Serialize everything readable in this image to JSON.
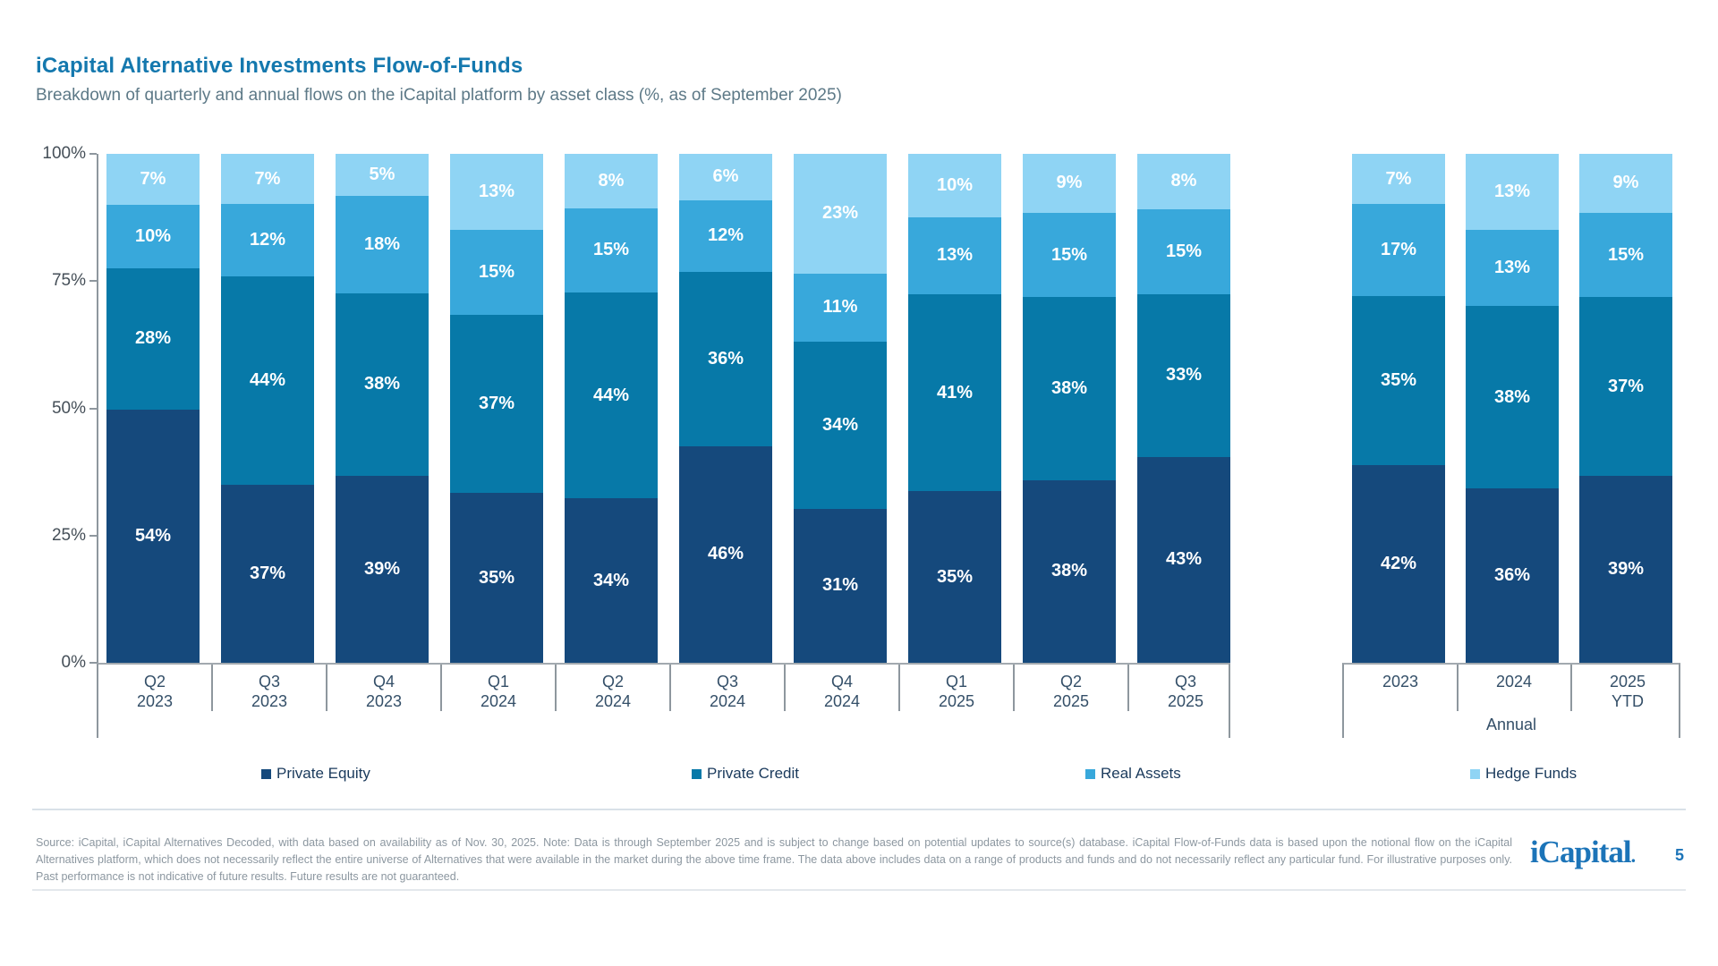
{
  "header": {
    "title": "iCapital Alternative Investments Flow-of-Funds",
    "subtitle": "Breakdown of quarterly and annual flows on the iCapital platform by asset class (%, as of September 2025)"
  },
  "chart_data": {
    "type": "bar",
    "stacked": true,
    "percent_stacked": true,
    "title": "iCapital Alternative Investments Flow-of-Funds",
    "xlabel": "",
    "ylabel": "",
    "unit": "%",
    "ylim": [
      0,
      100
    ],
    "yticks": [
      100,
      75,
      50,
      25,
      0
    ],
    "grid": false,
    "legend_position": "bottom",
    "series": [
      {
        "name": "Private Equity",
        "color": "#15497C"
      },
      {
        "name": "Private Credit",
        "color": "#0779A8"
      },
      {
        "name": "Real Assets",
        "color": "#38A8DB"
      },
      {
        "name": "Hedge Funds",
        "color": "#8FD4F4"
      }
    ],
    "groups": [
      {
        "name": "Quarterly",
        "group_label": "",
        "bars": [
          {
            "category": [
              "Q2",
              "2023"
            ],
            "values": [
              54,
              28,
              10,
              7
            ]
          },
          {
            "category": [
              "Q3",
              "2023"
            ],
            "values": [
              37,
              44,
              12,
              7
            ]
          },
          {
            "category": [
              "Q4",
              "2023"
            ],
            "values": [
              39,
              38,
              18,
              5
            ]
          },
          {
            "category": [
              "Q1",
              "2024"
            ],
            "values": [
              35,
              37,
              15,
              13
            ]
          },
          {
            "category": [
              "Q2",
              "2024"
            ],
            "values": [
              34,
              44,
              15,
              8
            ]
          },
          {
            "category": [
              "Q3",
              "2024"
            ],
            "values": [
              46,
              36,
              12,
              6
            ]
          },
          {
            "category": [
              "Q4",
              "2024"
            ],
            "values": [
              31,
              34,
              11,
              23
            ]
          },
          {
            "category": [
              "Q1",
              "2025"
            ],
            "values": [
              35,
              41,
              13,
              10
            ]
          },
          {
            "category": [
              "Q2",
              "2025"
            ],
            "values": [
              38,
              38,
              15,
              9
            ]
          },
          {
            "category": [
              "Q3",
              "2025"
            ],
            "values": [
              43,
              33,
              15,
              8
            ]
          }
        ]
      },
      {
        "name": "Annual",
        "group_label": "Annual",
        "bars": [
          {
            "category": [
              "2023"
            ],
            "values": [
              42,
              35,
              17,
              7
            ]
          },
          {
            "category": [
              "2024"
            ],
            "values": [
              36,
              38,
              13,
              13
            ]
          },
          {
            "category": [
              "2025",
              "YTD"
            ],
            "values": [
              39,
              37,
              15,
              9
            ]
          }
        ]
      }
    ]
  },
  "footer": {
    "note": "Source: iCapital, iCapital Alternatives Decoded, with data based on availability as of Nov. 30, 2025. Note: Data is through September 2025 and is subject to change based on potential updates to source(s) database. iCapital Flow-of-Funds data is based upon the notional flow on the iCapital Alternatives platform, which does not necessarily reflect the entire universe of Alternatives that were available in the market during the above time frame. The data above includes data on a range of products and funds and do not necessarily reflect any particular fund. For illustrative purposes only. Past performance is not indicative of future results. Future results are not guaranteed.",
    "logo_text": "iCapital",
    "logo_dot": ".",
    "page_number": "5"
  }
}
